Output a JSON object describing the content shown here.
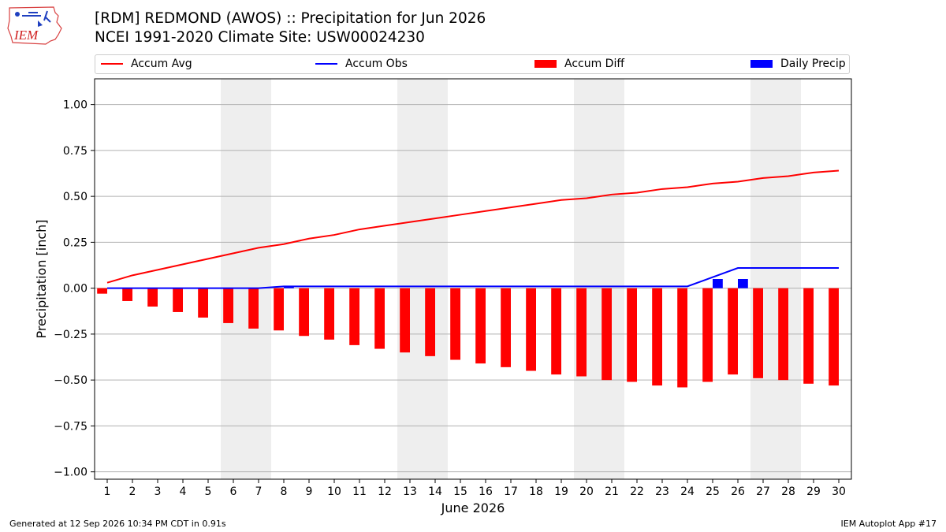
{
  "header": {
    "title_line1": "[RDM] REDMOND (AWOS) :: Precipitation for Jun 2026",
    "title_line2": "NCEI 1991-2020 Climate Site: USW00024230"
  },
  "logo": {
    "text": "IEM",
    "icon": "iem-logo-icon"
  },
  "footer": {
    "left": "Generated at 12 Sep 2026 10:34 PM CDT in 0.91s",
    "right": "IEM Autoplot App #17"
  },
  "colors": {
    "accum_avg": "#ff0000",
    "accum_obs": "#0000ff",
    "accum_diff": "#ff0000",
    "daily_precip": "#0000ff",
    "weekend_shade": "#eeeeee",
    "grid": "#b0b0b0"
  },
  "chart_data": {
    "type": "bar",
    "xlabel": "June 2026",
    "ylabel": "Precipitation [inch]",
    "ylim": [
      -1.04,
      1.14
    ],
    "yticks": [
      1.0,
      0.75,
      0.5,
      0.25,
      0.0,
      -0.25,
      -0.5,
      -0.75,
      -1.0
    ],
    "ytick_labels": [
      "1.00",
      "0.75",
      "0.50",
      "0.25",
      "0.00",
      "−0.25",
      "−0.50",
      "−0.75",
      "−1.00"
    ],
    "grid": "horizontal",
    "legend_position": "top",
    "days": [
      1,
      2,
      3,
      4,
      5,
      6,
      7,
      8,
      9,
      10,
      11,
      12,
      13,
      14,
      15,
      16,
      17,
      18,
      19,
      20,
      21,
      22,
      23,
      24,
      25,
      26,
      27,
      28,
      29,
      30
    ],
    "weekend_days": [
      6,
      7,
      13,
      14,
      20,
      21,
      27,
      28
    ],
    "series": [
      {
        "name": "Accum Avg",
        "kind": "line",
        "values": [
          0.03,
          0.07,
          0.1,
          0.13,
          0.16,
          0.19,
          0.22,
          0.24,
          0.27,
          0.29,
          0.32,
          0.34,
          0.36,
          0.38,
          0.4,
          0.42,
          0.44,
          0.46,
          0.48,
          0.49,
          0.51,
          0.52,
          0.54,
          0.55,
          0.57,
          0.58,
          0.6,
          0.61,
          0.63,
          0.64
        ]
      },
      {
        "name": "Accum Obs",
        "kind": "line",
        "values": [
          0.0,
          0.0,
          0.0,
          0.0,
          0.0,
          0.0,
          0.0,
          0.01,
          0.01,
          0.01,
          0.01,
          0.01,
          0.01,
          0.01,
          0.01,
          0.01,
          0.01,
          0.01,
          0.01,
          0.01,
          0.01,
          0.01,
          0.01,
          0.01,
          0.06,
          0.11,
          0.11,
          0.11,
          0.11,
          0.11
        ]
      },
      {
        "name": "Accum Diff",
        "kind": "bar",
        "values": [
          -0.03,
          -0.07,
          -0.1,
          -0.13,
          -0.16,
          -0.19,
          -0.22,
          -0.23,
          -0.26,
          -0.28,
          -0.31,
          -0.33,
          -0.35,
          -0.37,
          -0.39,
          -0.41,
          -0.43,
          -0.45,
          -0.47,
          -0.48,
          -0.5,
          -0.51,
          -0.53,
          -0.54,
          -0.51,
          -0.47,
          -0.49,
          -0.5,
          -0.52,
          -0.53
        ]
      },
      {
        "name": "Daily Precip",
        "kind": "bar",
        "values": [
          0,
          0,
          0,
          0,
          0,
          0,
          0,
          0.01,
          0,
          0,
          0,
          0,
          0,
          0,
          0,
          0,
          0,
          0,
          0,
          0,
          0,
          0,
          0,
          0,
          0.05,
          0.05,
          0,
          0,
          0,
          0
        ]
      }
    ]
  }
}
